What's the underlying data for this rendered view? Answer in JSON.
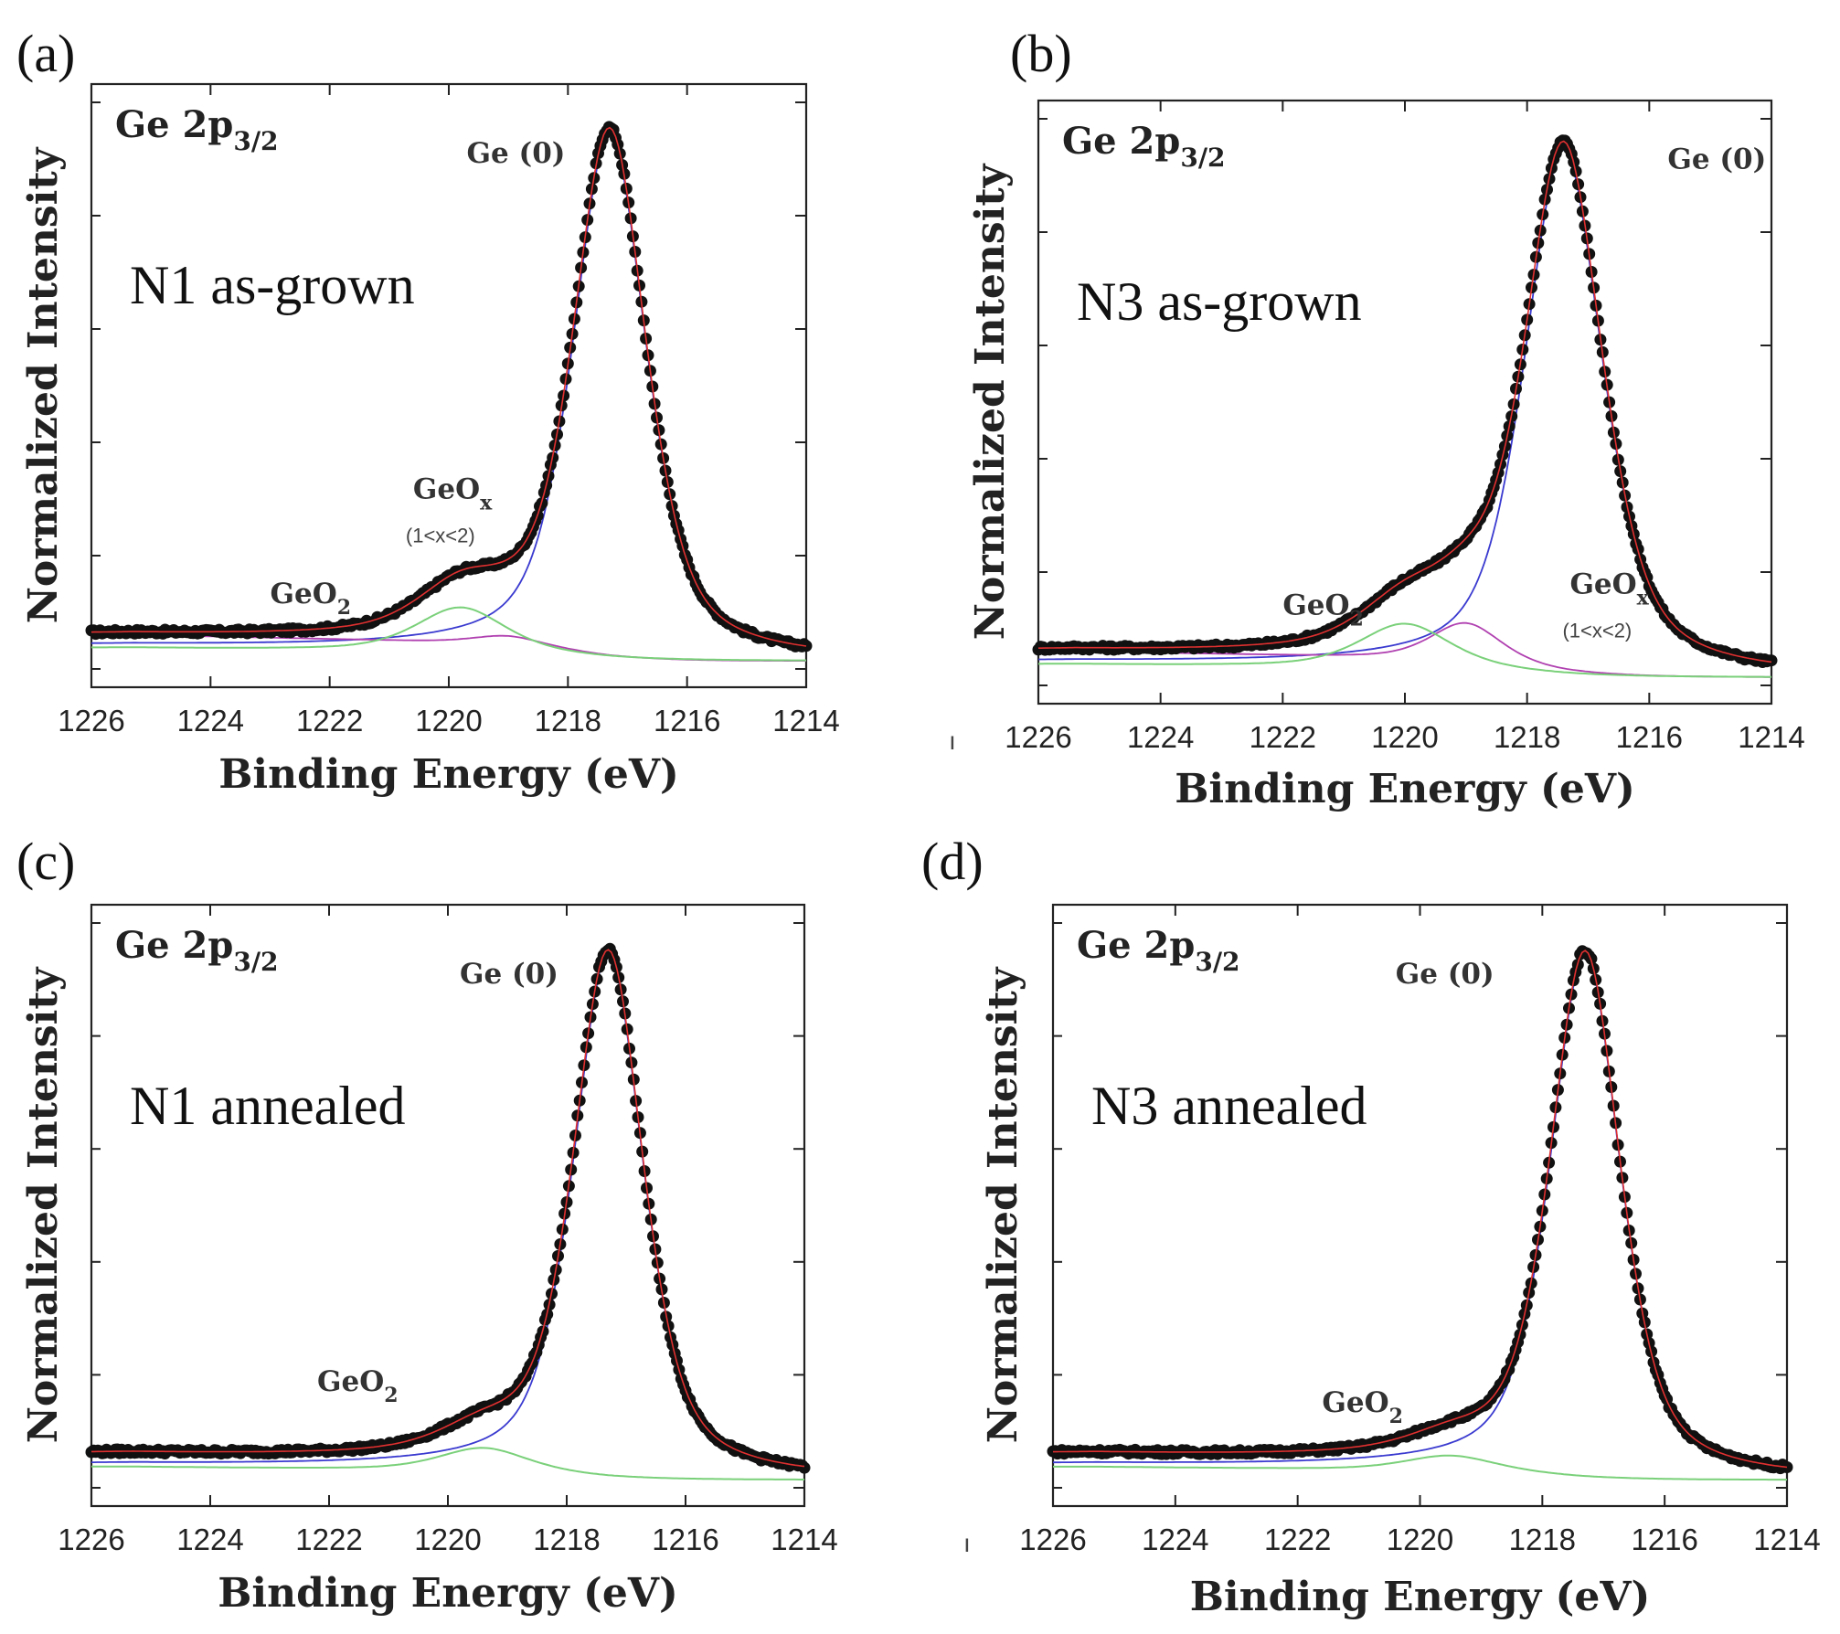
{
  "chart_data": [
    {
      "panel": "(a)",
      "type": "scatter",
      "core_level": "Ge 2p",
      "core_level_sub": "3/2",
      "sample_label": "N1 as-grown",
      "xlabel": "Binding Energy (eV)",
      "ylabel": "Normalized Intensity",
      "xlim": [
        1226,
        1214
      ],
      "ylim": [
        -0.05,
        1.1
      ],
      "x_ticks": [
        "1226",
        "1224",
        "1222",
        "1220",
        "1218",
        "1216",
        "1214"
      ],
      "peaks": {
        "ge0_center": 1217.3,
        "ge0_width": 0.75,
        "geox_center": 1219.0,
        "geox_amp": 0.018,
        "geo2_center": 1219.8,
        "geo2_amp": 0.085
      },
      "annotations": [
        {
          "id": "ge0",
          "text": "Ge (0)",
          "x": 1219.7,
          "y": 0.95
        },
        {
          "id": "geox",
          "text": "GeO",
          "sub": "x",
          "note": "(1<x<2)",
          "x": 1220.6,
          "y": 0.31
        },
        {
          "id": "geo2",
          "text": "GeO",
          "sub": "2",
          "x": 1223.0,
          "y": 0.11
        }
      ],
      "components": [
        {
          "name": "Ge (0)",
          "color": "#3a3ad0"
        },
        {
          "name": "GeOx",
          "color": "#b040b0"
        },
        {
          "name": "GeO2",
          "color": "#7ad07a"
        },
        {
          "name": "Fit",
          "color": "#e03030"
        }
      ],
      "grid": false
    },
    {
      "panel": "(b)",
      "type": "scatter",
      "core_level": "Ge 2p",
      "core_level_sub": "3/2",
      "sample_label": "N3 as-grown",
      "xlabel": "Binding Energy (eV)",
      "ylabel": "Normalized Intensity",
      "xlim": [
        1226,
        1214
      ],
      "ylim": [
        -0.05,
        1.1
      ],
      "x_ticks": [
        "1226",
        "1224",
        "1222",
        "1220",
        "1218",
        "1216",
        "1214"
      ],
      "peaks": {
        "ge0_center": 1217.4,
        "ge0_width": 0.78,
        "geox_center": 1219.0,
        "geox_amp": 0.075,
        "geo2_center": 1220.0,
        "geo2_amp": 0.085
      },
      "annotations": [
        {
          "id": "ge0",
          "text": "Ge (0)",
          "x": 1215.7,
          "y": 0.97
        },
        {
          "id": "geo2",
          "text": "GeO",
          "sub": "2",
          "x": 1222.0,
          "y": 0.12
        },
        {
          "id": "geox",
          "text": "GeO",
          "sub": "x",
          "note": "(1<x<2)",
          "x": 1217.3,
          "y": 0.16
        }
      ],
      "components": [
        {
          "name": "Ge (0)",
          "color": "#3a3ad0"
        },
        {
          "name": "GeOx",
          "color": "#b040b0"
        },
        {
          "name": "GeO2",
          "color": "#7ad07a"
        },
        {
          "name": "Fit",
          "color": "#e03030"
        }
      ],
      "grid": false,
      "stray_mark": "ı"
    },
    {
      "panel": "(c)",
      "type": "scatter",
      "core_level": "Ge 2p",
      "core_level_sub": "3/2",
      "sample_label": "N1 annealed",
      "xlabel": "Binding Energy (eV)",
      "ylabel": "Normalized Intensity",
      "xlim": [
        1226,
        1214
      ],
      "ylim": [
        -0.05,
        1.1
      ],
      "x_ticks": [
        "1226",
        "1224",
        "1222",
        "1220",
        "1218",
        "1216",
        "1214"
      ],
      "peaks": {
        "ge0_center": 1217.3,
        "ge0_width": 0.72,
        "geox_center": 1219.0,
        "geox_amp": 0.0,
        "geo2_center": 1219.4,
        "geo2_amp": 0.045
      },
      "annotations": [
        {
          "id": "ge0",
          "text": "Ge (0)",
          "x": 1219.8,
          "y": 0.95
        },
        {
          "id": "geo2",
          "text": "GeO",
          "sub": "2",
          "x": 1222.2,
          "y": 0.17
        }
      ],
      "components": [
        {
          "name": "Ge (0)",
          "color": "#3a3ad0"
        },
        {
          "name": "GeO2",
          "color": "#7ad07a"
        },
        {
          "name": "Fit",
          "color": "#e03030"
        }
      ],
      "grid": false
    },
    {
      "panel": "(d)",
      "type": "scatter",
      "core_level": "Ge 2p",
      "core_level_sub": "3/2",
      "sample_label": "N3 annealed",
      "xlabel": "Binding Energy (eV)",
      "ylabel": "Normalized Intensity",
      "xlim": [
        1226,
        1214
      ],
      "ylim": [
        -0.05,
        1.1
      ],
      "x_ticks": [
        "1226",
        "1224",
        "1222",
        "1220",
        "1218",
        "1216",
        "1214"
      ],
      "peaks": {
        "ge0_center": 1217.3,
        "ge0_width": 0.7,
        "geox_center": 1219.0,
        "geox_amp": 0.0,
        "geo2_center": 1219.5,
        "geo2_amp": 0.03
      },
      "annotations": [
        {
          "id": "ge0",
          "text": "Ge (0)",
          "x": 1220.4,
          "y": 0.95
        },
        {
          "id": "geo2",
          "text": "GeO",
          "sub": "2",
          "x": 1221.6,
          "y": 0.13
        }
      ],
      "components": [
        {
          "name": "Ge (0)",
          "color": "#3a3ad0"
        },
        {
          "name": "GeO2",
          "color": "#7ad07a"
        },
        {
          "name": "Fit",
          "color": "#e03030"
        }
      ],
      "grid": false,
      "stray_mark": "ı"
    }
  ]
}
